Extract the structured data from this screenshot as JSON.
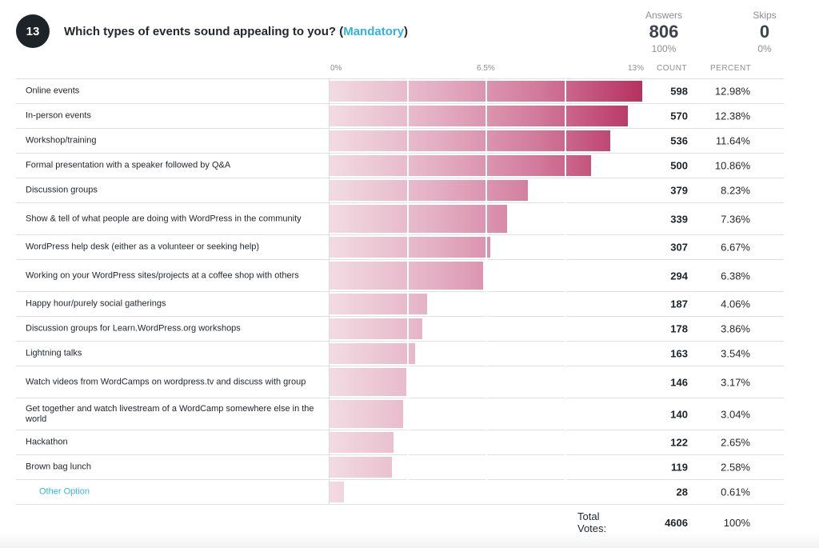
{
  "question": {
    "number": "13",
    "title_prefix": "Which types of events sound appealing to you? (",
    "mandatory": "Mandatory",
    "title_suffix": ")"
  },
  "stats": {
    "answers_label": "Answers",
    "answers_value": "806",
    "answers_pct": "100%",
    "skips_label": "Skips",
    "skips_value": "0",
    "skips_pct": "0%"
  },
  "columns": {
    "count": "COUNT",
    "percent": "PERCENT"
  },
  "chart_data": {
    "type": "bar",
    "orientation": "horizontal",
    "title": "Which types of events sound appealing to you? (Mandatory)",
    "axis_ticks": [
      "0%",
      "6.5%",
      "13%"
    ],
    "xlim": [
      0,
      13
    ],
    "categories": [
      "Online events",
      "In-person events",
      "Workshop/training",
      "Formal presentation with a speaker followed by Q&A",
      "Discussion groups",
      "Show & tell of what people are doing with WordPress in the community",
      "WordPress help desk (either as a volunteer or seeking help)",
      "Working on your WordPress sites/projects at a coffee shop with others",
      "Happy hour/purely social gatherings",
      "Discussion groups for Learn.WordPress.org workshops",
      "Lightning talks",
      "Watch videos from WordCamps on wordpress.tv and discuss with group",
      "Get together and watch livestream of a WordCamp somewhere else in the world",
      "Hackathon",
      "Brown bag lunch",
      "Other Option"
    ],
    "counts": [
      598,
      570,
      536,
      500,
      379,
      339,
      307,
      294,
      187,
      178,
      163,
      146,
      140,
      122,
      119,
      28
    ],
    "percent_labels": [
      "12.98%",
      "12.38%",
      "11.64%",
      "10.86%",
      "8.23%",
      "7.36%",
      "6.67%",
      "6.38%",
      "4.06%",
      "3.86%",
      "3.54%",
      "3.17%",
      "3.04%",
      "2.65%",
      "2.58%",
      "0.61%"
    ],
    "values": [
      12.98,
      12.38,
      11.64,
      10.86,
      8.23,
      7.36,
      6.67,
      6.38,
      4.06,
      3.86,
      3.54,
      3.17,
      3.04,
      2.65,
      2.58,
      0.61
    ],
    "bar_color_start": "#f2dbe3",
    "bar_color_end": "#b6325f"
  },
  "totals": {
    "label": "Total Votes:",
    "count": "4606",
    "percent": "100%"
  },
  "colors": {
    "accent": "#33b3db",
    "badge": "#1d2327"
  }
}
